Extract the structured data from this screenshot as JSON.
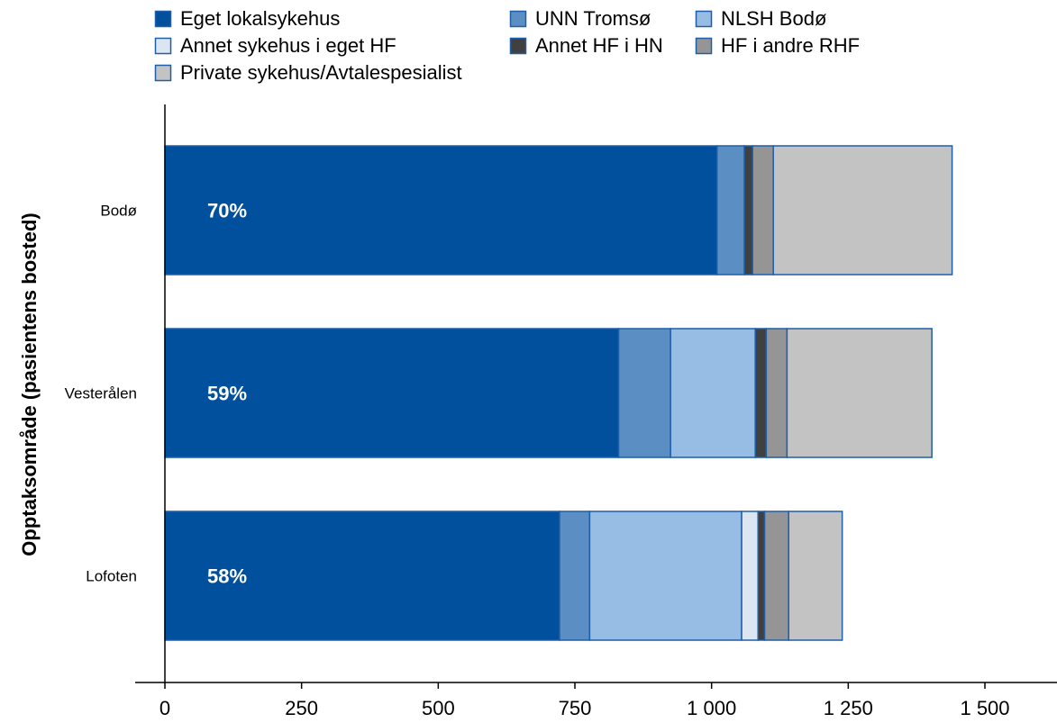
{
  "chart_data": {
    "type": "bar",
    "orientation": "horizontal",
    "stacked": true,
    "title": "",
    "xlabel": "",
    "ylabel": "Opptaksområde (pasientens bosted)",
    "xlim": [
      0,
      1600
    ],
    "x_ticks": [
      0,
      250,
      500,
      750,
      1000,
      1250,
      1500
    ],
    "x_tick_labels": [
      "0",
      "250",
      "500",
      "750",
      "1 000",
      "1 250",
      "1 500"
    ],
    "categories": [
      "Bodø",
      "Vesterålen",
      "Lofoten"
    ],
    "share_labels": [
      "70%",
      "59%",
      "58%"
    ],
    "legend_position": "top",
    "grid": false,
    "series": [
      {
        "name": "Eget lokalsykehus",
        "color": "#00509E",
        "values": [
          1010,
          830,
          722
        ]
      },
      {
        "name": "UNN Tromsø",
        "color": "#5B8EC3",
        "values": [
          50,
          95,
          55
        ]
      },
      {
        "name": "NLSH Bodø",
        "color": "#98BDE5",
        "values": [
          0,
          155,
          278
        ]
      },
      {
        "name": "Annet sykehus i eget HF",
        "color": "#DCE6F2",
        "values": [
          0,
          0,
          30
        ]
      },
      {
        "name": "Annet HF i HN",
        "color": "#404040",
        "values": [
          15,
          20,
          12
        ]
      },
      {
        "name": "HF i andre RHF",
        "color": "#959595",
        "values": [
          38,
          38,
          44
        ]
      },
      {
        "name": "Private sykehus/Avtalespesialist",
        "color": "#C3C3C3",
        "values": [
          327,
          265,
          98
        ]
      }
    ],
    "legend_order": [
      0,
      1,
      2,
      3,
      4,
      5,
      6
    ]
  }
}
